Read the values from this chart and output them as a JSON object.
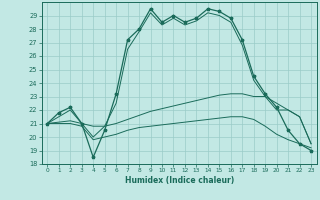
{
  "xlabel": "Humidex (Indice chaleur)",
  "bg_color": "#c2e8e4",
  "grid_color": "#9accc8",
  "line_color": "#1a6b5a",
  "xlim": [
    -0.5,
    23.5
  ],
  "ylim": [
    18,
    30
  ],
  "yticks": [
    18,
    19,
    20,
    21,
    22,
    23,
    24,
    25,
    26,
    27,
    28,
    29
  ],
  "xticks": [
    0,
    1,
    2,
    3,
    4,
    5,
    6,
    7,
    8,
    9,
    10,
    11,
    12,
    13,
    14,
    15,
    16,
    17,
    18,
    19,
    20,
    21,
    22,
    23
  ],
  "series": {
    "main": [
      21.0,
      21.8,
      22.2,
      21.0,
      18.5,
      20.5,
      23.2,
      27.2,
      28.0,
      29.5,
      28.5,
      29.0,
      28.5,
      28.8,
      29.5,
      29.3,
      28.8,
      27.2,
      24.5,
      23.2,
      22.2,
      20.5,
      19.5,
      19.0
    ],
    "max": [
      21.0,
      21.5,
      22.0,
      21.0,
      20.0,
      20.8,
      22.5,
      26.5,
      27.8,
      29.2,
      28.3,
      28.8,
      28.3,
      28.6,
      29.2,
      29.0,
      28.5,
      26.8,
      24.2,
      23.0,
      22.0,
      22.0,
      21.5,
      19.5
    ],
    "avg": [
      21.0,
      21.1,
      21.2,
      21.0,
      20.8,
      20.8,
      21.0,
      21.3,
      21.6,
      21.9,
      22.1,
      22.3,
      22.5,
      22.7,
      22.9,
      23.1,
      23.2,
      23.2,
      23.0,
      23.0,
      22.5,
      22.0,
      21.5,
      19.5
    ],
    "min": [
      21.0,
      21.0,
      21.0,
      20.8,
      19.8,
      20.0,
      20.2,
      20.5,
      20.7,
      20.8,
      20.9,
      21.0,
      21.1,
      21.2,
      21.3,
      21.4,
      21.5,
      21.5,
      21.3,
      20.8,
      20.2,
      19.8,
      19.5,
      19.2
    ]
  }
}
